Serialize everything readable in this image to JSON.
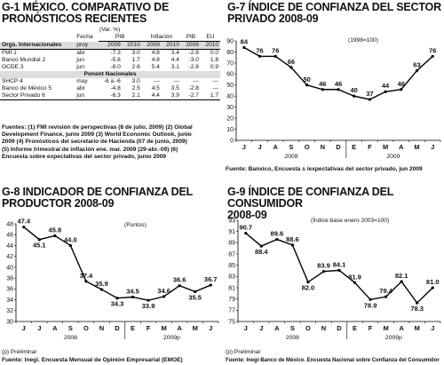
{
  "g1": {
    "title": "G-1 MÉXICO. COMPARATIVO DE PRONÓSTICOS RECIENTES",
    "unit": "(Var. %)",
    "col_fecha": "Fecha",
    "grp_pib": "PIB",
    "grp_inflacion": "Inflación",
    "grp_pib2": "PIB",
    "grp_eu": "EU",
    "section1": "Orgs. Internacionales",
    "section2": "Ponent Nacionales",
    "years": [
      "2009",
      "2010",
      "2009",
      "2010",
      "2009",
      "2010"
    ],
    "proy": "proy",
    "rows": [
      {
        "name": "FMI 1",
        "date": "abr",
        "v": [
          "-7.3",
          "3.0",
          "4.8",
          "3.4",
          "-2.8",
          "0.0"
        ]
      },
      {
        "name": "Banco Mundial 2",
        "date": "jun",
        "v": [
          "-5.8",
          "1.7",
          "4.8",
          "4.4",
          "-3.0",
          "1.8"
        ]
      },
      {
        "name": "OCDE 3",
        "date": "jun",
        "v": [
          "-8.0",
          "2.6",
          "5.4",
          "3.1",
          "-2.8",
          "0.9"
        ]
      },
      {
        "name": "SHCP 4",
        "date": "may",
        "v": [
          "-6 a -6",
          "3.0",
          "---",
          "---",
          "---",
          "---"
        ]
      },
      {
        "name": "Banco de México 5",
        "date": "abr",
        "v": [
          "-4.8",
          "2.5",
          "4.5",
          "3.5",
          "-2.8",
          "---"
        ]
      },
      {
        "name": "Sector Privado 6",
        "date": "jun",
        "v": [
          "-6.3",
          "2.1",
          "4.4",
          "3.9",
          "-2.7",
          "1.7"
        ]
      }
    ],
    "notes": [
      "Fuentes: (1) FMI revisión de perspectivas (8 de julio, 2009) (2) Global",
      "Development Finance, junio 2009 (3) World Economic Outlook, junio",
      "2009 (4) Pronósticos del secretario de Hacienda (07 de junio, 2009)",
      "(5) Informe trimestral de inflación ene. mar. 2009 (29-abr.-09) (6)",
      "Encuesta sobre expectativas del sector privado, junio 2009"
    ]
  },
  "g7": {
    "title_l1": "G-7 ÍNDICE DE CONFIANZA DEL SECTOR",
    "title_l2": "PRIVADO 2008-09",
    "unit": "(1998=100)",
    "source": "Fuente: Banxico, Encuesta s /expectativas del sector privado, jun 2009",
    "year1": "2008",
    "year2": "2009"
  },
  "g8": {
    "title_l1": "G-8 INDICADOR DE CONFIANZA DEL",
    "title_l2": "PRODUCTOR 2008-09",
    "unit": "(Puntos)",
    "note": "(p) Preliminar",
    "source": "Fuente: Inegi. Encuesta Mensual de Opinión Empresarial (EMOE)",
    "year1": "2008",
    "year2": "2009p"
  },
  "g9": {
    "title_l1": "G-9 ÍNDICE DE CONFIANZA DEL CONSUMIDOR",
    "title_l2": "2008-09",
    "unit": "(Índice base enero 2003=100)",
    "note": "(p) Preliminar",
    "source": "Fuente: Inegi-Banco de México. Encuesta Nacional sobre Confianza del Consumidor",
    "year1": "2008",
    "year2": "2009p"
  },
  "chart_data": [
    {
      "id": "g7",
      "type": "line",
      "title": "G-7 ÍNDICE DE CONFIANZA DEL SECTOR PRIVADO 2008-09",
      "categories": [
        "J",
        "J",
        "A",
        "S",
        "O",
        "N",
        "D",
        "E",
        "F",
        "M",
        "A",
        "M",
        "J"
      ],
      "values": [
        84,
        76,
        76,
        66,
        50,
        46,
        46,
        40,
        37,
        44,
        46,
        63,
        76
      ],
      "ylim": [
        0,
        90
      ],
      "yticks": [
        0,
        10,
        20,
        30,
        40,
        50,
        60,
        70,
        80,
        90
      ],
      "grid": false
    },
    {
      "id": "g8",
      "type": "line",
      "title": "G-8 INDICADOR DE CONFIANZA DEL PRODUCTOR 2008-09",
      "categories": [
        "J",
        "J",
        "A",
        "S",
        "O",
        "N",
        "D",
        "E",
        "F",
        "M",
        "A",
        "M",
        "J"
      ],
      "values": [
        47.4,
        45.1,
        45.8,
        44.0,
        37.4,
        35.9,
        34.3,
        34.5,
        33.9,
        34.6,
        36.6,
        35.5,
        36.7
      ],
      "ylim": [
        30,
        48
      ],
      "yticks": [
        30,
        32,
        34,
        36,
        38,
        40,
        42,
        44,
        46,
        48
      ],
      "grid": false
    },
    {
      "id": "g9",
      "type": "line",
      "title": "G-9 ÍNDICE DE CONFIANZA DEL CONSUMIDOR 2008-09",
      "categories": [
        "J",
        "J",
        "A",
        "S",
        "O",
        "N",
        "D",
        "E",
        "F",
        "M",
        "A",
        "M",
        "J"
      ],
      "values": [
        90.7,
        88.4,
        89.6,
        88.6,
        82.0,
        83.9,
        84.1,
        81.9,
        78.9,
        79.4,
        82.1,
        78.3,
        81.0
      ],
      "ylim": [
        75,
        93
      ],
      "yticks": [
        75,
        77,
        79,
        81,
        83,
        85,
        87,
        89,
        91,
        93
      ],
      "grid": false
    }
  ]
}
